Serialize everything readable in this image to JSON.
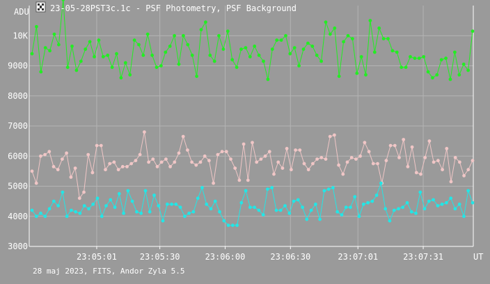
{
  "header": {
    "app_icon": "film-clip-icon",
    "title": "23-05-28PST3c.1c - PSF Photometry, PSF Background"
  },
  "footer": {
    "caption": "28 maj 2023, FITS, Andor Zyla 5.5"
  },
  "chart_data": {
    "type": "line",
    "title": "23-05-28PST3c.1c - PSF Photometry, PSF Background",
    "ylabel": "ADU",
    "xlabel": "UT",
    "ylim": [
      3000,
      11000
    ],
    "y_ticks": [
      {
        "value": 3000,
        "label": "3000"
      },
      {
        "value": 4000,
        "label": "4000"
      },
      {
        "value": 5000,
        "label": "5000"
      },
      {
        "value": 6000,
        "label": "6000"
      },
      {
        "value": 7000,
        "label": "7000"
      },
      {
        "value": 8000,
        "label": "8000"
      },
      {
        "value": 9000,
        "label": "9000"
      },
      {
        "value": 10000,
        "label": "10K"
      }
    ],
    "x_range": [
      "23:04:30",
      "23:07:54"
    ],
    "x_ticks": [
      "23:05:01",
      "23:05:30",
      "23:06:00",
      "23:06:30",
      "23:07:01",
      "23:07:31"
    ],
    "grid": true,
    "colors": {
      "background": "#9a9a9a",
      "grid": "#b4b4b4",
      "axis": "#ffffff",
      "green": "#22ee22",
      "pink": "#f0c6c6",
      "cyan": "#22e6e6"
    },
    "series": [
      {
        "color": "green",
        "values": [
          9400,
          10300,
          8800,
          9600,
          9500,
          10050,
          9700,
          11200,
          8950,
          9650,
          8850,
          9150,
          9550,
          9800,
          9300,
          9850,
          9300,
          9350,
          8950,
          9400,
          8600,
          9100,
          8700,
          9850,
          9700,
          9350,
          10050,
          9350,
          8950,
          9000,
          9450,
          9650,
          10000,
          9050,
          10000,
          9700,
          9350,
          8650,
          10200,
          10450,
          9350,
          9150,
          10000,
          9550,
          10150,
          9200,
          8950,
          9550,
          9600,
          9300,
          9650,
          9350,
          9150,
          8550,
          9550,
          9850,
          9850,
          10000,
          9400,
          9600,
          9000,
          9550,
          9750,
          9650,
          9350,
          9150,
          10450,
          10050,
          10250,
          8650,
          9800,
          10000,
          9900,
          8750,
          9300,
          8700,
          10500,
          9450,
          10250,
          9900,
          9900,
          9500,
          9450,
          8950,
          8950,
          9300,
          9250,
          9250,
          9300,
          8800,
          8600,
          8700,
          9200,
          9250,
          8550,
          9450,
          8700,
          9050,
          8850,
          10150
        ]
      },
      {
        "color": "pink",
        "values": [
          5500,
          5100,
          6000,
          6050,
          6150,
          5650,
          5550,
          5900,
          6100,
          5300,
          5600,
          4600,
          4800,
          6050,
          5450,
          6350,
          6350,
          5550,
          5750,
          5800,
          5550,
          5650,
          5650,
          5750,
          5850,
          6050,
          6800,
          5800,
          5900,
          5650,
          5800,
          5900,
          5650,
          5800,
          6100,
          6650,
          6200,
          5800,
          5700,
          5800,
          6000,
          5850,
          5100,
          6050,
          6150,
          6150,
          5900,
          5600,
          5200,
          6400,
          5200,
          6450,
          5800,
          5900,
          6000,
          6150,
          5400,
          5800,
          5600,
          6250,
          5550,
          6200,
          6200,
          5750,
          5550,
          5750,
          5900,
          5950,
          5900,
          6650,
          6700,
          5700,
          5400,
          5800,
          5950,
          5900,
          6000,
          6450,
          6150,
          5750,
          5750,
          5100,
          5850,
          6350,
          6350,
          5950,
          6550,
          5650,
          6300,
          5450,
          5400,
          5950,
          6500,
          5800,
          5850,
          5550,
          6250,
          5150,
          5950,
          5800,
          5350,
          5550,
          5850
        ]
      },
      {
        "color": "cyan",
        "values": [
          4200,
          4000,
          4100,
          4000,
          4250,
          4500,
          4350,
          4800,
          4000,
          4200,
          4150,
          4100,
          4350,
          4250,
          4400,
          4600,
          4000,
          4350,
          4550,
          4300,
          4750,
          4100,
          4850,
          4500,
          4150,
          4100,
          4850,
          4150,
          4700,
          4350,
          3850,
          4400,
          4400,
          4400,
          4300,
          4000,
          4100,
          4150,
          4600,
          4950,
          4400,
          4250,
          4500,
          4150,
          3850,
          3700,
          3700,
          3700,
          4450,
          4850,
          4300,
          4300,
          4200,
          4050,
          4900,
          4950,
          4200,
          4200,
          4350,
          4100,
          4500,
          4550,
          4300,
          3900,
          4200,
          4400,
          3900,
          4850,
          4900,
          4950,
          4150,
          4050,
          4300,
          4300,
          4650,
          4000,
          4400,
          4450,
          4500,
          4700,
          5100,
          4250,
          3850,
          4200,
          4250,
          4300,
          4450,
          4150,
          4100,
          4800,
          4250,
          4500,
          4550,
          4350,
          4400,
          4450,
          4600,
          4250,
          4400,
          4000,
          4850,
          4450
        ]
      }
    ]
  }
}
